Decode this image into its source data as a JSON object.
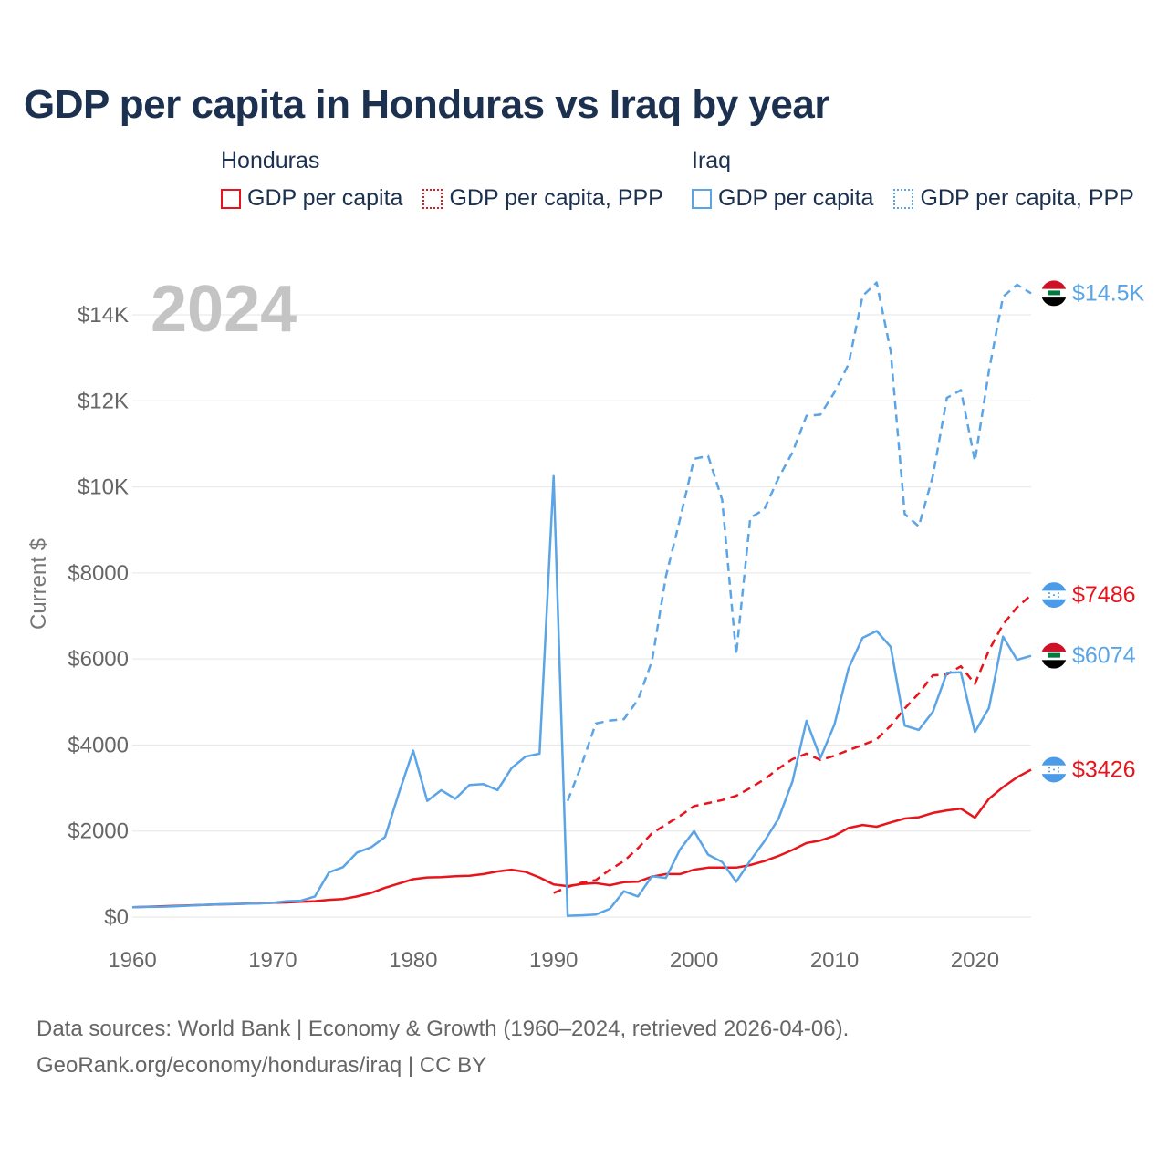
{
  "title": "GDP per capita in Honduras vs Iraq by year",
  "legend": [
    {
      "country": "Honduras",
      "items": [
        {
          "label": "GDP per capita",
          "style": "solid",
          "color": "#e8141c"
        },
        {
          "label": "GDP per capita, PPP",
          "style": "dotted",
          "color": "#e8141c"
        }
      ]
    },
    {
      "country": "Iraq",
      "items": [
        {
          "label": "GDP per capita",
          "style": "solid",
          "color": "#5ba4e5"
        },
        {
          "label": "GDP per capita, PPP",
          "style": "dotted",
          "color": "#5ba4e5"
        }
      ]
    }
  ],
  "footer": {
    "line1": "Data sources: World Bank | Economy & Growth (1960–2024, retrieved 2026-04-06).",
    "line2": "GeoRank.org/economy/honduras/iraq | CC BY"
  },
  "chart_data": {
    "type": "line",
    "title": "GDP per capita in Honduras vs Iraq by year",
    "year_label": "2024",
    "xlabel": "",
    "ylabel": "Current $",
    "xlim": [
      1960,
      2024
    ],
    "ylim": [
      0,
      14500
    ],
    "xticks": [
      1960,
      1970,
      1980,
      1990,
      2000,
      2010,
      2020
    ],
    "yticks": [
      {
        "value": 0,
        "label": "$0"
      },
      {
        "value": 2000,
        "label": "$2000"
      },
      {
        "value": 4000,
        "label": "$4000"
      },
      {
        "value": 6000,
        "label": "$6000"
      },
      {
        "value": 8000,
        "label": "$8000"
      },
      {
        "value": 10000,
        "label": "$10K"
      },
      {
        "value": 12000,
        "label": "$12K"
      },
      {
        "value": 14000,
        "label": "$14K"
      }
    ],
    "grid": true,
    "series": [
      {
        "name": "Honduras GDP per capita",
        "color": "#e8141c",
        "dash": "solid",
        "end_label": "$3426",
        "flag": "honduras",
        "x": [
          1960,
          1961,
          1962,
          1963,
          1964,
          1965,
          1966,
          1967,
          1968,
          1969,
          1970,
          1971,
          1972,
          1973,
          1974,
          1975,
          1976,
          1977,
          1978,
          1979,
          1980,
          1981,
          1982,
          1983,
          1984,
          1985,
          1986,
          1987,
          1988,
          1989,
          1990,
          1991,
          1992,
          1993,
          1994,
          1995,
          1996,
          1997,
          1998,
          1999,
          2000,
          2001,
          2002,
          2003,
          2004,
          2005,
          2006,
          2007,
          2008,
          2009,
          2010,
          2011,
          2012,
          2013,
          2014,
          2015,
          2016,
          2017,
          2018,
          2019,
          2020,
          2021,
          2022,
          2023,
          2024
        ],
        "y": [
          230,
          240,
          250,
          260,
          270,
          280,
          290,
          300,
          310,
          320,
          330,
          340,
          355,
          370,
          400,
          420,
          480,
          560,
          680,
          780,
          880,
          920,
          930,
          950,
          960,
          1000,
          1060,
          1100,
          1050,
          920,
          760,
          720,
          770,
          790,
          740,
          810,
          820,
          940,
          1000,
          1000,
          1100,
          1150,
          1150,
          1150,
          1210,
          1300,
          1420,
          1560,
          1720,
          1780,
          1890,
          2070,
          2140,
          2100,
          2200,
          2290,
          2320,
          2420,
          2480,
          2520,
          2310,
          2750,
          3020,
          3250,
          3426
        ]
      },
      {
        "name": "Honduras GDP per capita, PPP",
        "color": "#e8141c",
        "dash": "dashed",
        "end_label": "$7486",
        "flag": "honduras",
        "x": [
          1990,
          1991,
          1992,
          1993,
          1994,
          1995,
          1996,
          1997,
          1998,
          1999,
          2000,
          2001,
          2002,
          2003,
          2004,
          2005,
          2006,
          2007,
          2008,
          2009,
          2010,
          2011,
          2012,
          2013,
          2014,
          2015,
          2016,
          2017,
          2018,
          2019,
          2020,
          2021,
          2022,
          2023,
          2024
        ],
        "y": [
          560,
          700,
          800,
          860,
          1100,
          1300,
          1600,
          1950,
          2150,
          2350,
          2580,
          2650,
          2720,
          2820,
          3000,
          3200,
          3450,
          3670,
          3800,
          3650,
          3750,
          3880,
          4000,
          4130,
          4450,
          4850,
          5200,
          5620,
          5640,
          5830,
          5420,
          6200,
          6800,
          7200,
          7486
        ]
      },
      {
        "name": "Iraq GDP per capita",
        "color": "#5ba4e5",
        "dash": "solid",
        "end_label": "$6074",
        "flag": "iraq",
        "x": [
          1960,
          1961,
          1962,
          1963,
          1964,
          1965,
          1966,
          1967,
          1968,
          1969,
          1970,
          1971,
          1972,
          1973,
          1974,
          1975,
          1976,
          1977,
          1978,
          1979,
          1980,
          1981,
          1982,
          1983,
          1984,
          1985,
          1986,
          1987,
          1988,
          1989,
          1990,
          1991,
          1992,
          1993,
          1994,
          1995,
          1996,
          1997,
          1998,
          1999,
          2000,
          2001,
          2002,
          2003,
          2004,
          2005,
          2006,
          2007,
          2008,
          2009,
          2010,
          2011,
          2012,
          2013,
          2014,
          2015,
          2016,
          2017,
          2018,
          2019,
          2020,
          2021,
          2022,
          2023,
          2024
        ],
        "y": [
          230,
          235,
          240,
          250,
          265,
          280,
          295,
          305,
          310,
          315,
          330,
          370,
          380,
          480,
          1040,
          1160,
          1500,
          1620,
          1860,
          2900,
          3870,
          2700,
          2950,
          2750,
          3070,
          3090,
          2950,
          3460,
          3730,
          3800,
          10250,
          30,
          40,
          60,
          190,
          600,
          480,
          950,
          910,
          1570,
          2000,
          1450,
          1280,
          820,
          1310,
          1760,
          2280,
          3150,
          4560,
          3700,
          4480,
          5780,
          6490,
          6650,
          6280,
          4450,
          4350,
          4770,
          5680,
          5690,
          4300,
          4860,
          6520,
          5980,
          6074
        ]
      },
      {
        "name": "Iraq GDP per capita, PPP",
        "color": "#5ba4e5",
        "dash": "dashed",
        "end_label": "$14.5K",
        "flag": "iraq",
        "x": [
          1991,
          1992,
          1993,
          1994,
          1995,
          1996,
          1997,
          1998,
          1999,
          2000,
          2001,
          2002,
          2003,
          2004,
          2005,
          2006,
          2007,
          2008,
          2009,
          2010,
          2011,
          2012,
          2013,
          2014,
          2015,
          2016,
          2017,
          2018,
          2019,
          2020,
          2021,
          2022,
          2023,
          2024
        ],
        "y": [
          2700,
          3550,
          4500,
          4570,
          4600,
          5050,
          5950,
          7920,
          9250,
          10650,
          10720,
          9700,
          6100,
          9280,
          9480,
          10200,
          10800,
          11650,
          11680,
          12200,
          12850,
          14440,
          14750,
          13150,
          9370,
          9080,
          10250,
          12070,
          12250,
          10600,
          12700,
          14420,
          14700,
          14500
        ]
      }
    ]
  }
}
